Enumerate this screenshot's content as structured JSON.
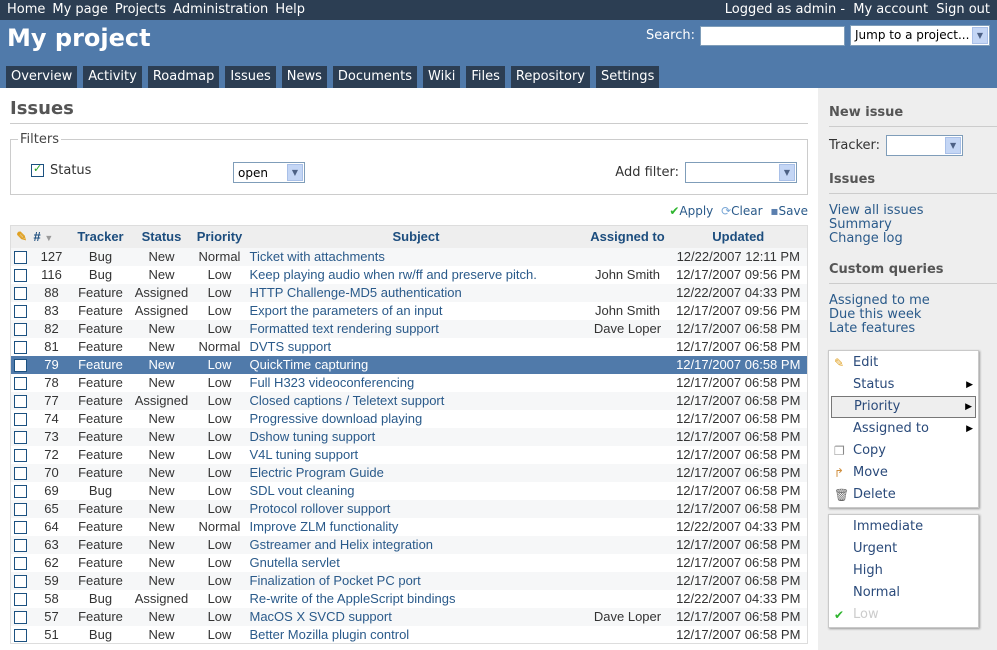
{
  "top_menu": {
    "left": [
      "Home",
      "My page",
      "Projects",
      "Administration",
      "Help"
    ],
    "logged_as": "Logged as admin",
    "my_account": "My account",
    "sign_out": "Sign out"
  },
  "header": {
    "title": "My project",
    "search_label": "Search:",
    "search_value": "",
    "jump_label": "Jump to a project..."
  },
  "tabs": [
    "Overview",
    "Activity",
    "Roadmap",
    "Issues",
    "News",
    "Documents",
    "Wiki",
    "Files",
    "Repository",
    "Settings"
  ],
  "page_title": "Issues",
  "filters": {
    "legend": "Filters",
    "status_label": "Status",
    "status_checked": true,
    "status_value": "open",
    "add_filter_label": "Add filter:",
    "add_filter_value": ""
  },
  "actions": {
    "apply": "Apply",
    "clear": "Clear",
    "save": "Save"
  },
  "table": {
    "columns": [
      "#",
      "Tracker",
      "Status",
      "Priority",
      "Subject",
      "Assigned to",
      "Updated"
    ],
    "rows": [
      [
        "127",
        "Bug",
        "New",
        "Normal",
        "Ticket with attachments",
        "",
        "12/22/2007 12:11 PM"
      ],
      [
        "116",
        "Bug",
        "New",
        "Low",
        "Keep playing audio when rw/ff and preserve pitch.",
        "John Smith",
        "12/17/2007 09:56 PM"
      ],
      [
        "88",
        "Feature",
        "Assigned",
        "Low",
        "HTTP Challenge-MD5 authentication",
        "",
        "12/22/2007 04:33 PM"
      ],
      [
        "83",
        "Feature",
        "Assigned",
        "Low",
        "Export the parameters of an input",
        "John Smith",
        "12/17/2007 09:56 PM"
      ],
      [
        "82",
        "Feature",
        "New",
        "Low",
        "Formatted text rendering support",
        "Dave Loper",
        "12/17/2007 06:58 PM"
      ],
      [
        "81",
        "Feature",
        "New",
        "Normal",
        "DVTS support",
        "",
        "12/17/2007 06:58 PM"
      ],
      [
        "79",
        "Feature",
        "New",
        "Low",
        "QuickTime capturing",
        "",
        "12/17/2007 06:58 PM"
      ],
      [
        "78",
        "Feature",
        "New",
        "Low",
        "Full H323 videoconferencing",
        "",
        "12/17/2007 06:58 PM"
      ],
      [
        "77",
        "Feature",
        "Assigned",
        "Low",
        "Closed captions / Teletext support",
        "",
        "12/17/2007 06:58 PM"
      ],
      [
        "74",
        "Feature",
        "New",
        "Low",
        "Progressive download playing",
        "",
        "12/17/2007 06:58 PM"
      ],
      [
        "73",
        "Feature",
        "New",
        "Low",
        "Dshow tuning support",
        "",
        "12/17/2007 06:58 PM"
      ],
      [
        "72",
        "Feature",
        "New",
        "Low",
        "V4L tuning support",
        "",
        "12/17/2007 06:58 PM"
      ],
      [
        "70",
        "Feature",
        "New",
        "Low",
        "Electric Program Guide",
        "",
        "12/17/2007 06:58 PM"
      ],
      [
        "69",
        "Bug",
        "New",
        "Low",
        "SDL vout cleaning",
        "",
        "12/17/2007 06:58 PM"
      ],
      [
        "65",
        "Feature",
        "New",
        "Low",
        "Protocol rollover support",
        "",
        "12/17/2007 06:58 PM"
      ],
      [
        "64",
        "Feature",
        "New",
        "Normal",
        "Improve ZLM functionality",
        "",
        "12/22/2007 04:33 PM"
      ],
      [
        "63",
        "Feature",
        "New",
        "Low",
        "Gstreamer and Helix integration",
        "",
        "12/17/2007 06:58 PM"
      ],
      [
        "62",
        "Feature",
        "New",
        "Low",
        "Gnutella servlet",
        "",
        "12/17/2007 06:58 PM"
      ],
      [
        "59",
        "Feature",
        "New",
        "Low",
        "Finalization of Pocket PC port",
        "",
        "12/17/2007 06:58 PM"
      ],
      [
        "58",
        "Bug",
        "Assigned",
        "Low",
        "Re-write of the AppleScript bindings",
        "",
        "12/22/2007 04:33 PM"
      ],
      [
        "57",
        "Feature",
        "New",
        "Low",
        "MacOS X SVCD support",
        "Dave Loper",
        "12/17/2007 06:58 PM"
      ],
      [
        "51",
        "Bug",
        "New",
        "Low",
        "Better Mozilla plugin control",
        "",
        "12/17/2007 06:58 PM"
      ]
    ],
    "selected_row": "79"
  },
  "context_menu": {
    "items": [
      "Edit",
      "Status",
      "Priority",
      "Assigned to",
      "Copy",
      "Move",
      "Delete"
    ],
    "highlighted": "Priority"
  },
  "priority_submenu": {
    "items": [
      "Immediate",
      "Urgent",
      "High",
      "Normal",
      "Low"
    ],
    "current": "Low"
  },
  "sidebar": {
    "new_issue": "New issue",
    "tracker_label": "Tracker:",
    "issues_heading": "Issues",
    "issues_links": [
      "View all issues",
      "Summary",
      "Change log"
    ],
    "custom_queries_heading": "Custom queries",
    "custom_queries": [
      "Assigned to me",
      "Due this week",
      "Late features"
    ]
  },
  "colors": {
    "header": "#507aaa",
    "top_bar": "#2c3e53",
    "selected_row": "#507aaa"
  }
}
